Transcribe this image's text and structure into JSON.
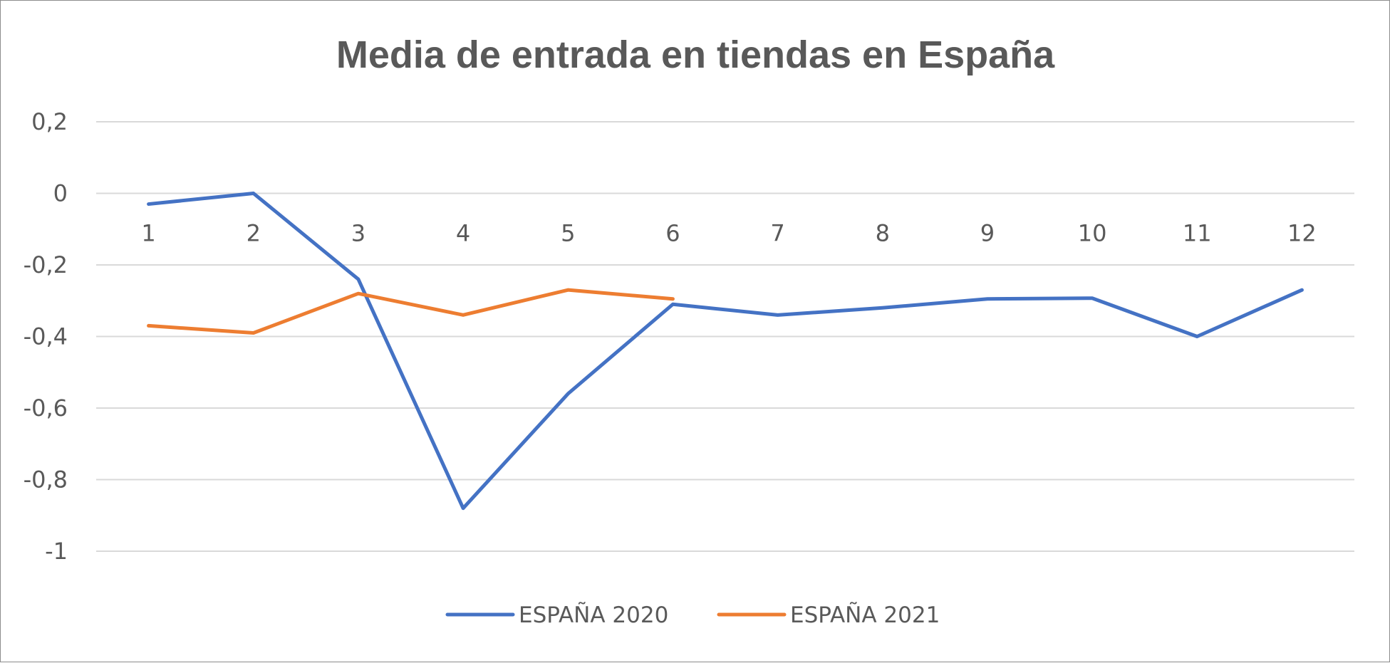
{
  "chart_data": {
    "type": "line",
    "title": "Media de entrada en tiendas en España",
    "xlabel": "",
    "ylabel": "",
    "x": [
      1,
      2,
      3,
      4,
      5,
      6,
      7,
      8,
      9,
      10,
      11,
      12
    ],
    "x_tick_labels": [
      "1",
      "2",
      "3",
      "4",
      "5",
      "6",
      "7",
      "8",
      "9",
      "10",
      "11",
      "12"
    ],
    "ylim": [
      -1,
      0.2
    ],
    "y_ticks": [
      0.2,
      0,
      -0.2,
      -0.4,
      -0.6,
      -0.8,
      -1
    ],
    "y_tick_labels": [
      "0,2",
      "0",
      "-0,2",
      "-0,4",
      "-0,6",
      "-0,8",
      "-1"
    ],
    "grid": true,
    "legend_position": "bottom",
    "series": [
      {
        "name": "ESPAÑA 2020",
        "color": "#4472c4",
        "values": [
          -0.03,
          0.0,
          -0.24,
          -0.88,
          -0.56,
          -0.31,
          -0.34,
          -0.32,
          -0.295,
          -0.293,
          -0.4,
          -0.27
        ]
      },
      {
        "name": "ESPAÑA 2021",
        "color": "#ed7d31",
        "values": [
          -0.37,
          -0.39,
          -0.28,
          -0.34,
          -0.27,
          -0.295,
          null,
          null,
          null,
          null,
          null,
          null
        ]
      }
    ]
  }
}
